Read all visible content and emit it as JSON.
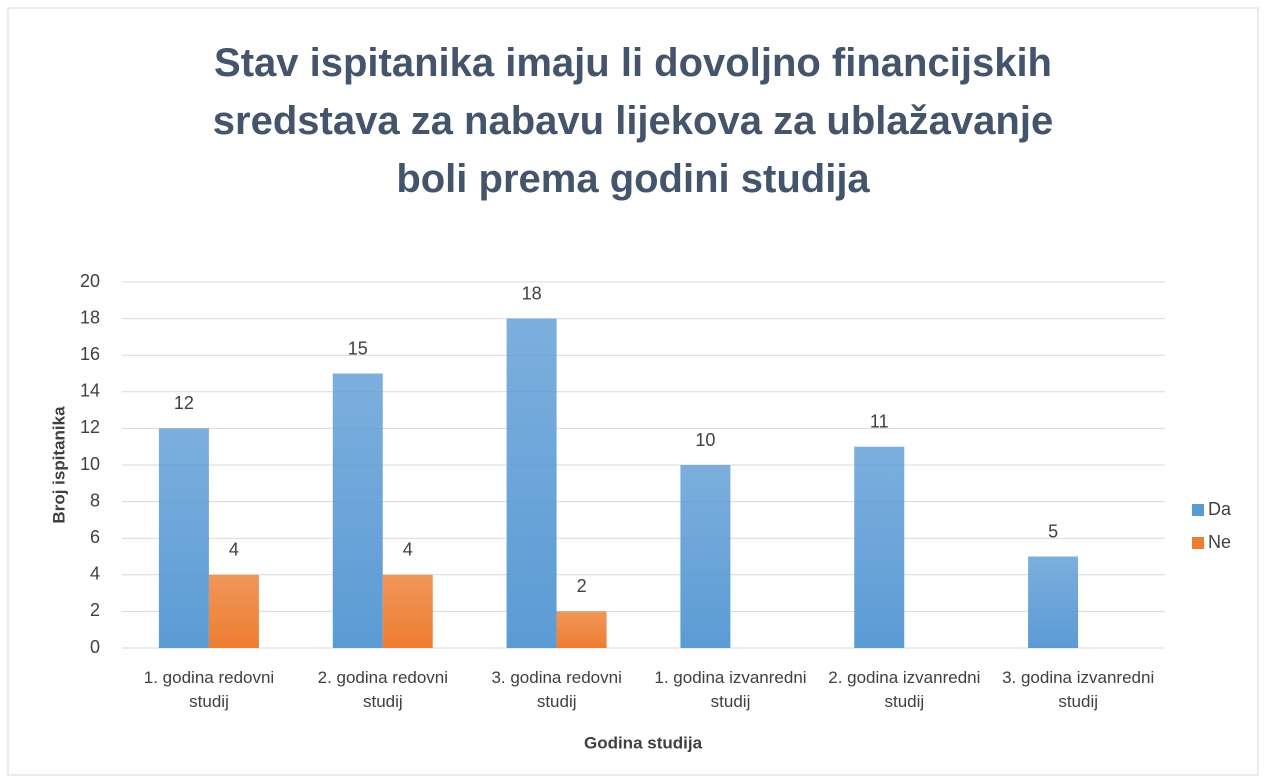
{
  "chart_data": {
    "type": "bar",
    "title": "Stav ispitanika imaju li dovoljno financijskih sredstava za nabavu lijekova za ublažavanje boli prema godini studija",
    "x_label": "Godina studija",
    "y_label": "Broj ispitanika",
    "categories": [
      "1. godina redovni studij",
      "2. godina redovni studij",
      "3. godina redovni studij",
      "1. godina izvanredni studij",
      "2. godina izvanredni studij",
      "3. godina izvanredni studij"
    ],
    "series": [
      {
        "name": "Da",
        "color": "#5b9bd5",
        "values": [
          12,
          15,
          18,
          10,
          11,
          5
        ]
      },
      {
        "name": "Ne",
        "color": "#ed7d31",
        "values": [
          4,
          4,
          2,
          null,
          null,
          null
        ]
      }
    ],
    "ylim": [
      0,
      20
    ],
    "yticks": [
      0,
      2,
      4,
      6,
      8,
      10,
      12,
      14,
      16,
      18,
      20
    ],
    "grid": true,
    "legend": "right"
  }
}
